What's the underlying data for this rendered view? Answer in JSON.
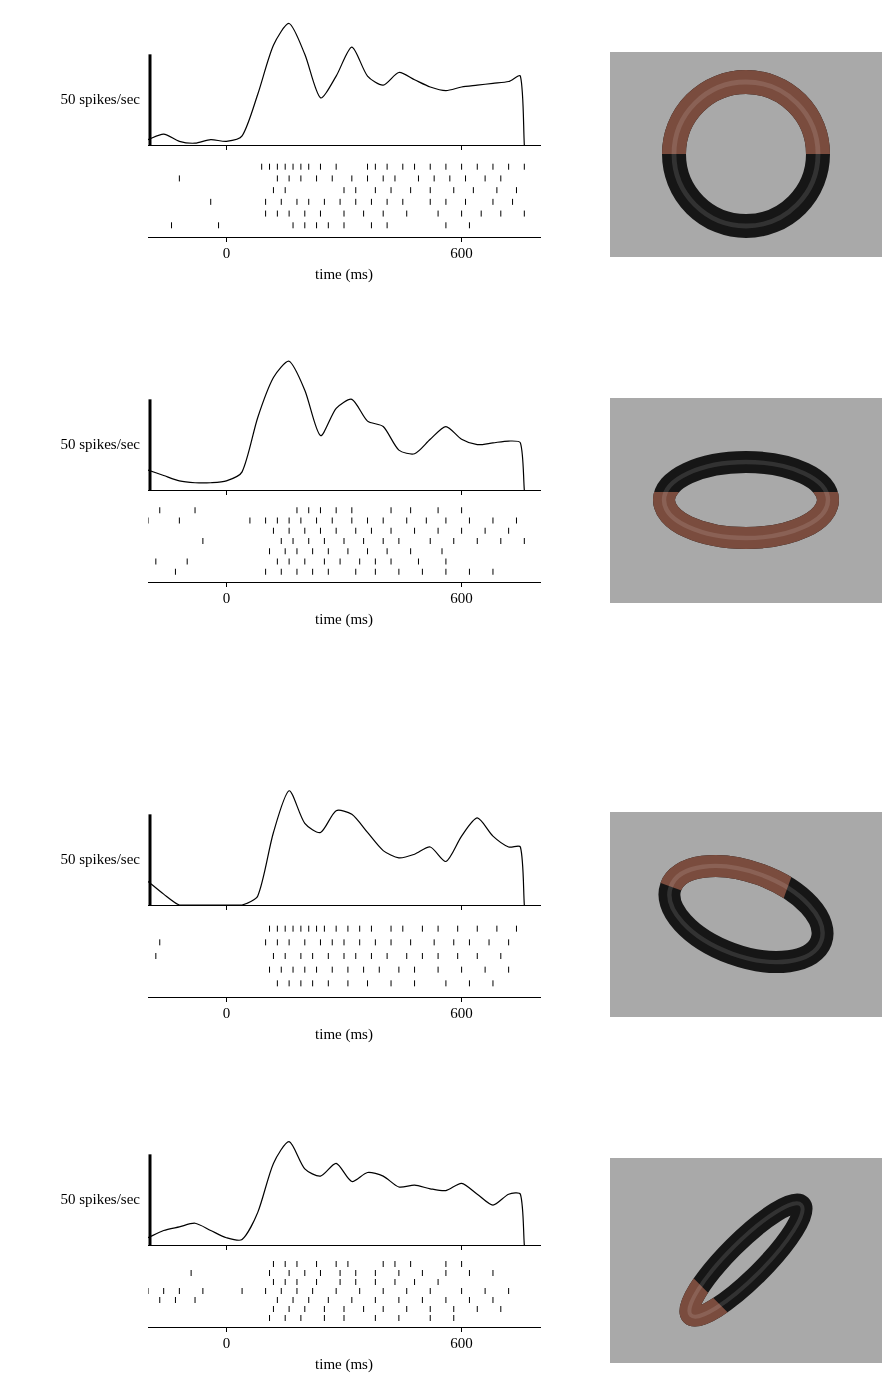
{
  "chart_data": [
    {
      "type": "line",
      "x": [
        -200,
        -160,
        -120,
        -80,
        -40,
        0,
        40,
        80,
        120,
        160,
        200,
        240,
        280,
        320,
        360,
        400,
        440,
        480,
        520,
        560,
        600,
        640,
        680,
        720,
        750,
        760
      ],
      "values": [
        3,
        6,
        2,
        1,
        3,
        2,
        5,
        28,
        55,
        67,
        50,
        26,
        38,
        54,
        38,
        33,
        40,
        36,
        32,
        30,
        32,
        33,
        34,
        35,
        38,
        0
      ],
      "color": "#000000",
      "xlim": [
        -200,
        800
      ],
      "xticks": [
        0,
        600
      ],
      "ylim": [
        0,
        75
      ],
      "tick_labels": false,
      "grid": false,
      "scale_bar": {
        "value": 50,
        "label": "50 spikes/sec"
      }
    },
    {
      "type": "scatter",
      "color": "#000000",
      "marker": "line",
      "xlim": [
        -200,
        800
      ],
      "xticks": [
        0,
        600
      ],
      "ylim": [
        0,
        7
      ],
      "grid": false,
      "x_label": "time (ms)",
      "trials": [
        [
          90,
          110,
          130,
          150,
          170,
          190,
          210,
          240,
          280,
          360,
          380,
          410,
          450,
          480,
          520,
          560,
          600,
          640,
          680,
          720,
          760
        ],
        [
          -120,
          130,
          160,
          190,
          230,
          270,
          320,
          360,
          400,
          430,
          490,
          530,
          570,
          610,
          660,
          700
        ],
        [
          120,
          150,
          300,
          330,
          380,
          420,
          470,
          520,
          580,
          630,
          690,
          740
        ],
        [
          -40,
          100,
          140,
          180,
          210,
          250,
          290,
          330,
          370,
          410,
          450,
          520,
          560,
          610,
          680,
          730
        ],
        [
          100,
          130,
          160,
          200,
          240,
          300,
          350,
          400,
          460,
          540,
          600,
          650,
          700,
          760
        ],
        [
          -140,
          -20,
          170,
          200,
          230,
          260,
          300,
          370,
          410,
          560,
          620
        ]
      ]
    },
    {
      "type": "line",
      "x": [
        -200,
        -160,
        -120,
        -80,
        -40,
        0,
        40,
        80,
        120,
        160,
        200,
        240,
        280,
        320,
        360,
        400,
        440,
        480,
        520,
        560,
        600,
        640,
        680,
        720,
        750,
        760
      ],
      "values": [
        11,
        8,
        5,
        4,
        4,
        5,
        10,
        40,
        62,
        71,
        55,
        30,
        45,
        50,
        38,
        35,
        22,
        20,
        28,
        35,
        28,
        25,
        26,
        27,
        26,
        0
      ],
      "color": "#000000",
      "xlim": [
        -200,
        800
      ],
      "xticks": [
        0,
        600
      ],
      "ylim": [
        0,
        75
      ],
      "tick_labels": false,
      "grid": false,
      "scale_bar": {
        "value": 50,
        "label": "50 spikes/sec"
      }
    },
    {
      "type": "scatter",
      "color": "#000000",
      "marker": "line",
      "xlim": [
        -200,
        800
      ],
      "xticks": [
        0,
        600
      ],
      "ylim": [
        0,
        8
      ],
      "grid": false,
      "x_label": "time (ms)",
      "trials": [
        [
          -170,
          -80,
          180,
          210,
          240,
          280,
          320,
          420,
          470,
          540,
          600
        ],
        [
          -200,
          -120,
          60,
          100,
          130,
          160,
          190,
          230,
          270,
          320,
          360,
          400,
          460,
          510,
          560,
          620,
          680,
          740
        ],
        [
          120,
          160,
          200,
          240,
          280,
          330,
          370,
          420,
          480,
          540,
          600,
          660,
          720
        ],
        [
          -60,
          140,
          170,
          210,
          250,
          300,
          350,
          400,
          440,
          520,
          580,
          640,
          700,
          760
        ],
        [
          110,
          150,
          180,
          220,
          260,
          310,
          360,
          410,
          470,
          550
        ],
        [
          -180,
          -100,
          130,
          160,
          200,
          250,
          290,
          340,
          380,
          420,
          490,
          560
        ],
        [
          -130,
          100,
          140,
          180,
          220,
          260,
          330,
          380,
          440,
          500,
          560,
          620,
          680
        ]
      ]
    },
    {
      "type": "line",
      "x": [
        -200,
        -160,
        -120,
        -80,
        -40,
        0,
        40,
        80,
        120,
        160,
        200,
        240,
        280,
        320,
        360,
        400,
        440,
        480,
        520,
        560,
        600,
        640,
        680,
        720,
        750,
        760
      ],
      "values": [
        13,
        6,
        0,
        0,
        0,
        0,
        0,
        5,
        40,
        63,
        45,
        40,
        52,
        50,
        40,
        30,
        26,
        28,
        32,
        24,
        38,
        48,
        38,
        32,
        32,
        0
      ],
      "color": "#000000",
      "xlim": [
        -200,
        800
      ],
      "xticks": [
        0,
        600
      ],
      "ylim": [
        0,
        75
      ],
      "tick_labels": false,
      "grid": false,
      "scale_bar": {
        "value": 50,
        "label": "50 spikes/sec"
      }
    },
    {
      "type": "scatter",
      "color": "#000000",
      "marker": "line",
      "xlim": [
        -200,
        800
      ],
      "xticks": [
        0,
        600
      ],
      "ylim": [
        0,
        6
      ],
      "grid": false,
      "x_label": "time (ms)",
      "trials": [
        [
          110,
          130,
          150,
          170,
          190,
          210,
          230,
          250,
          280,
          310,
          340,
          370,
          420,
          450,
          500,
          540,
          590,
          640,
          690,
          740
        ],
        [
          -170,
          100,
          130,
          160,
          200,
          240,
          270,
          300,
          340,
          380,
          420,
          470,
          530,
          580,
          620,
          670,
          720
        ],
        [
          -180,
          120,
          150,
          190,
          220,
          260,
          300,
          330,
          370,
          410,
          460,
          500,
          540,
          590,
          640,
          700
        ],
        [
          110,
          140,
          170,
          200,
          230,
          270,
          310,
          350,
          390,
          440,
          480,
          540,
          600,
          660,
          720
        ],
        [
          130,
          160,
          190,
          220,
          260,
          310,
          360,
          420,
          480,
          560,
          620,
          680
        ]
      ]
    },
    {
      "type": "line",
      "x": [
        -200,
        -160,
        -120,
        -80,
        -40,
        0,
        40,
        80,
        120,
        160,
        200,
        240,
        280,
        320,
        360,
        400,
        440,
        480,
        520,
        560,
        600,
        640,
        680,
        720,
        750,
        760
      ],
      "values": [
        4,
        8,
        10,
        12,
        8,
        4,
        3,
        18,
        45,
        57,
        42,
        38,
        45,
        35,
        40,
        38,
        32,
        33,
        31,
        30,
        34,
        28,
        22,
        28,
        28,
        0
      ],
      "color": "#000000",
      "xlim": [
        -200,
        800
      ],
      "xticks": [
        0,
        600
      ],
      "ylim": [
        0,
        75
      ],
      "tick_labels": false,
      "grid": false,
      "scale_bar": {
        "value": 50,
        "label": "50 spikes/sec"
      }
    },
    {
      "type": "scatter",
      "color": "#000000",
      "marker": "line",
      "xlim": [
        -200,
        800
      ],
      "xticks": [
        0,
        600
      ],
      "ylim": [
        0,
        8
      ],
      "grid": false,
      "x_label": "time (ms)",
      "trials": [
        [
          120,
          150,
          180,
          230,
          280,
          310,
          400,
          430,
          470,
          560,
          600
        ],
        [
          -90,
          110,
          160,
          200,
          240,
          290,
          330,
          380,
          440,
          500,
          560,
          620,
          680
        ],
        [
          120,
          150,
          180,
          230,
          290,
          330,
          380,
          430,
          480,
          540
        ],
        [
          -200,
          -160,
          -120,
          -60,
          40,
          100,
          140,
          180,
          220,
          280,
          340,
          400,
          460,
          520,
          600,
          660,
          720
        ],
        [
          -170,
          -130,
          -80,
          130,
          170,
          210,
          260,
          320,
          380,
          440,
          500,
          560,
          620,
          680
        ],
        [
          120,
          160,
          200,
          250,
          300,
          350,
          400,
          460,
          520,
          580,
          640,
          700
        ],
        [
          110,
          150,
          190,
          250,
          300,
          380,
          440,
          520,
          580
        ]
      ]
    }
  ]
}
